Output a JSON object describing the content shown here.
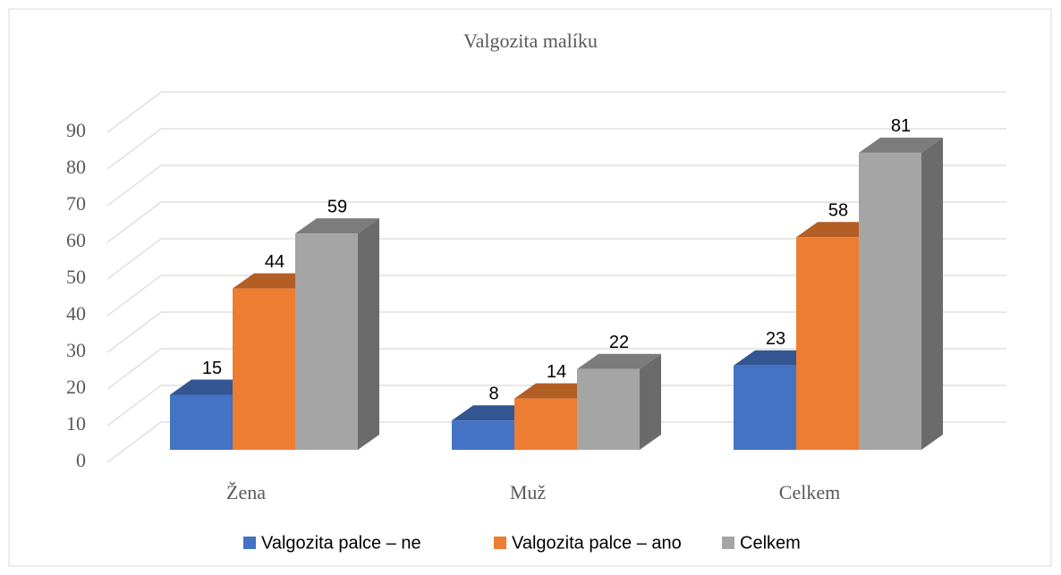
{
  "chart_data": {
    "type": "bar3d",
    "title": "Valgozita malíku",
    "categories": [
      "Žena",
      "Muž",
      "Celkem"
    ],
    "series": [
      {
        "name": "Valgozita palce – ne",
        "color": "#4472c4",
        "values": [
          15,
          8,
          23
        ]
      },
      {
        "name": "Valgozita palce – ano",
        "color": "#ed7d31",
        "values": [
          44,
          14,
          58
        ]
      },
      {
        "name": "Celkem",
        "color": "#a5a5a5",
        "values": [
          59,
          22,
          81
        ]
      }
    ],
    "ylim": [
      0,
      90
    ],
    "yticks": [
      0,
      10,
      20,
      30,
      40,
      50,
      60,
      70,
      80,
      90
    ],
    "grid": true,
    "legend": "bottom"
  }
}
